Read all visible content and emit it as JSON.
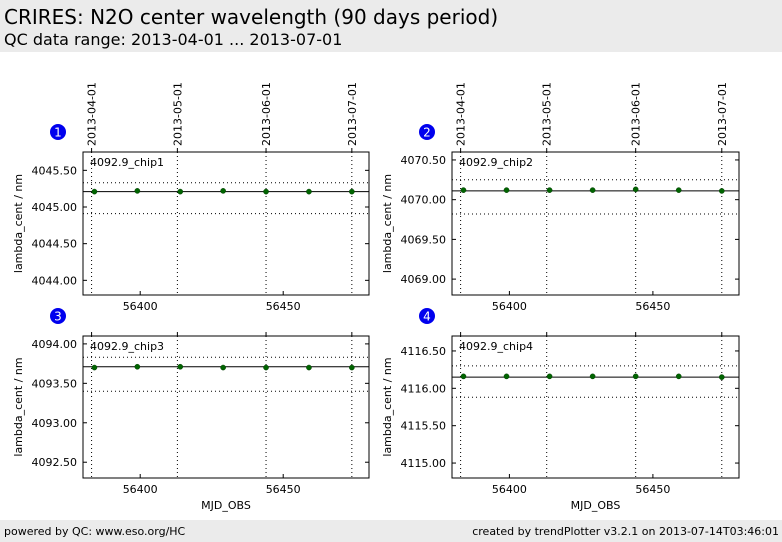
{
  "header": {
    "title": "CRIRES: N2O center wavelength (90 days period)",
    "subtitle": "QC data range: 2013-04-01 ... 2013-07-01"
  },
  "footer": {
    "left": "powered by QC: www.eso.org/HC",
    "right": "created by trendPlotter v3.2.1 on 2013-07-14T03:46:01"
  },
  "colors": {
    "marker": "#006400",
    "badge": "#0000ee",
    "header_bg": "#ebebeb"
  },
  "chart_data": [
    {
      "type": "scatter",
      "panel_number": "1",
      "label": "4092.9_chip1",
      "ylabel": "lambda_cent / nm",
      "xlabel": "",
      "xlim": [
        56380,
        56480
      ],
      "ylim": [
        4043.8,
        4045.75
      ],
      "yticks": [
        4044.0,
        4044.5,
        4045.0,
        4045.5
      ],
      "ytick_labels": [
        "4044.00",
        "4044.50",
        "4045.00",
        "4045.50"
      ],
      "xticks": [
        56400,
        56450
      ],
      "xtick_labels": [
        "56400",
        "56450"
      ],
      "top_ticks": [
        56383,
        56413,
        56444,
        56474
      ],
      "top_tick_labels": [
        "2013-04-01",
        "2013-05-01",
        "2013-06-01",
        "2013-07-01"
      ],
      "mean": 4045.21,
      "upper_limit": 4045.33,
      "lower_limit": 4044.91,
      "x": [
        56384,
        56399,
        56414,
        56429,
        56444,
        56459,
        56474
      ],
      "y": [
        4045.21,
        4045.22,
        4045.21,
        4045.22,
        4045.21,
        4045.21,
        4045.21
      ]
    },
    {
      "type": "scatter",
      "panel_number": "2",
      "label": "4092.9_chip2",
      "ylabel": "lambda_cent / nm",
      "xlabel": "",
      "xlim": [
        56380,
        56480
      ],
      "ylim": [
        4068.8,
        4070.6
      ],
      "yticks": [
        4069.0,
        4069.5,
        4070.0,
        4070.5
      ],
      "ytick_labels": [
        "4069.00",
        "4069.50",
        "4070.00",
        "4070.50"
      ],
      "xticks": [
        56400,
        56450
      ],
      "xtick_labels": [
        "56400",
        "56450"
      ],
      "top_ticks": [
        56383,
        56413,
        56444,
        56474
      ],
      "top_tick_labels": [
        "2013-04-01",
        "2013-05-01",
        "2013-06-01",
        "2013-07-01"
      ],
      "mean": 4070.11,
      "upper_limit": 4070.25,
      "lower_limit": 4069.82,
      "x": [
        56384,
        56399,
        56414,
        56429,
        56444,
        56459,
        56474
      ],
      "y": [
        4070.12,
        4070.12,
        4070.12,
        4070.12,
        4070.13,
        4070.12,
        4070.11
      ]
    },
    {
      "type": "scatter",
      "panel_number": "3",
      "label": "4092.9_chip3",
      "ylabel": "lambda_cent / nm",
      "xlabel": "MJD_OBS",
      "xlim": [
        56380,
        56480
      ],
      "ylim": [
        4092.3,
        4094.1
      ],
      "yticks": [
        4092.5,
        4093.0,
        4093.5,
        4094.0
      ],
      "ytick_labels": [
        "4092.50",
        "4093.00",
        "4093.50",
        "4094.00"
      ],
      "xticks": [
        56400,
        56450
      ],
      "xtick_labels": [
        "56400",
        "56450"
      ],
      "top_ticks": [
        56383,
        56413,
        56444,
        56474
      ],
      "top_tick_labels": [],
      "mean": 4093.71,
      "upper_limit": 4093.83,
      "lower_limit": 4093.4,
      "x": [
        56384,
        56399,
        56414,
        56429,
        56444,
        56459,
        56474
      ],
      "y": [
        4093.7,
        4093.71,
        4093.71,
        4093.7,
        4093.7,
        4093.7,
        4093.7
      ]
    },
    {
      "type": "scatter",
      "panel_number": "4",
      "label": "4092.9_chip4",
      "ylabel": "lambda_cent / nm",
      "xlabel": "MJD_OBS",
      "xlim": [
        56380,
        56480
      ],
      "ylim": [
        4114.8,
        4116.7
      ],
      "yticks": [
        4115.0,
        4115.5,
        4116.0,
        4116.5
      ],
      "ytick_labels": [
        "4115.00",
        "4115.50",
        "4116.00",
        "4116.50"
      ],
      "xticks": [
        56400,
        56450
      ],
      "xtick_labels": [
        "56400",
        "56450"
      ],
      "top_ticks": [
        56383,
        56413,
        56444,
        56474
      ],
      "top_tick_labels": [],
      "mean": 4116.15,
      "upper_limit": 4116.3,
      "lower_limit": 4115.88,
      "x": [
        56384,
        56399,
        56414,
        56429,
        56444,
        56459,
        56474
      ],
      "y": [
        4116.16,
        4116.16,
        4116.16,
        4116.16,
        4116.16,
        4116.16,
        4116.15
      ]
    }
  ]
}
